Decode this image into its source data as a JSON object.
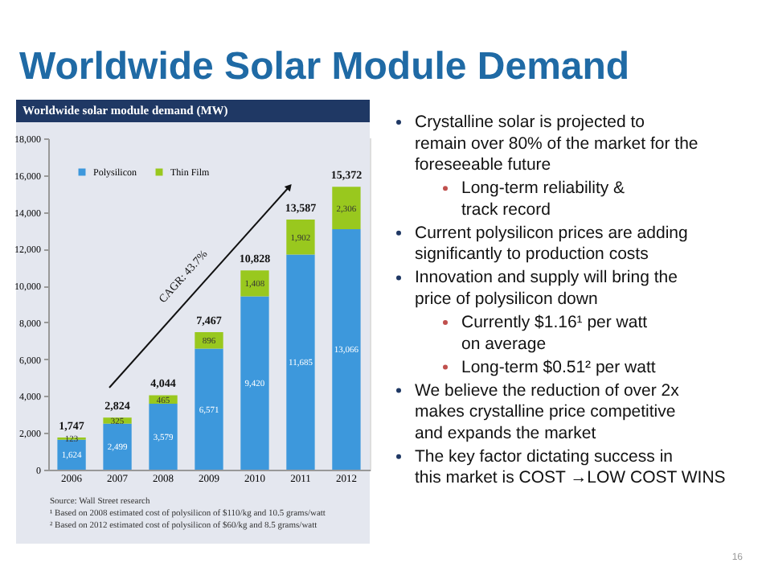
{
  "chart_data": {
    "type": "bar",
    "title": "Worldwide Solar Module Demand",
    "subtitle": "Worldwide solar module demand (MW)",
    "categories": [
      "2006",
      "2007",
      "2008",
      "2009",
      "2010",
      "2011",
      "2012"
    ],
    "series": [
      {
        "name": "Polysilicon",
        "color": "#3d98dc",
        "values": [
          1624,
          2499,
          3579,
          6571,
          9420,
          11685,
          13066
        ],
        "value_labels": [
          "1,624",
          "2,499",
          "3,579",
          "6,571",
          "9,420",
          "11,685",
          "13,066"
        ]
      },
      {
        "name": "Thin Film",
        "color": "#99c81e",
        "values": [
          123,
          325,
          465,
          896,
          1408,
          1902,
          2306
        ],
        "value_labels": [
          "123",
          "325",
          "465",
          "896",
          "1,408",
          "1,902",
          "2,306"
        ]
      }
    ],
    "stacked": true,
    "totals": [
      "1,747",
      "2,824",
      "4,044",
      "7,467",
      "10,828",
      "13,587",
      "15,372"
    ],
    "ylim": [
      0,
      18000
    ],
    "yticks": [
      {
        "value": 0,
        "label": "0"
      },
      {
        "value": 2000,
        "label": "2,000"
      },
      {
        "value": 4000,
        "label": "4,000"
      },
      {
        "value": 6000,
        "label": "6,000"
      },
      {
        "value": 8000,
        "label": "8,000"
      },
      {
        "value": 10000,
        "label": "10,000"
      },
      {
        "value": 12000,
        "label": "12,000"
      },
      {
        "value": 14000,
        "label": "14,000"
      },
      {
        "value": 16000,
        "label": "16,000"
      },
      {
        "value": 18000,
        "label": "18,000"
      }
    ],
    "legend": "top left",
    "annotations": [
      "CAGR: 43.7%",
      "Crystalline solar is projected to remain over 80% of the market for the foreseeable future",
      "Long-term reliability & track record",
      "Current polysilicon prices are adding significantly to production costs",
      "Innovation and supply will bring the price of polysilicon down",
      "Currently $1.16¹ per watt on average",
      "Long-term $0.51² per watt",
      "We believe the reduction of over 2x makes crystalline price competitive and expands the market",
      "The key factor dictating success in this market is COST →LOW COST WINS",
      "Source: Wall Street research",
      "¹ Based on 2008 estimated cost of polysilicon of $110/kg and 10.5 grams/watt",
      "² Based on 2012 estimated cost of polysilicon of $60/kg and 8.5 grams/watt",
      "16"
    ]
  }
}
